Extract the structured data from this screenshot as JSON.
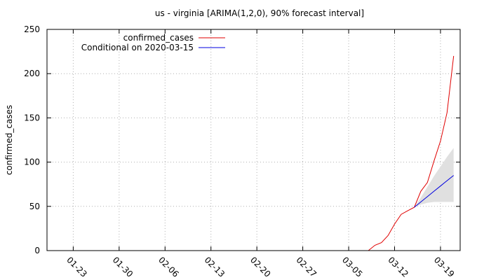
{
  "chart_data": {
    "type": "line",
    "title": "us - virginia [ARIMA(1,2,0), 90% forecast interval]",
    "xlabel": "",
    "ylabel": "confirmed_cases",
    "xlim": [
      "2020-01-19",
      "2020-03-22"
    ],
    "ylim": [
      0,
      250
    ],
    "x_ticks": [
      "2020-01-23",
      "2020-01-30",
      "2020-02-06",
      "2020-02-13",
      "2020-02-20",
      "2020-02-27",
      "2020-03-05",
      "2020-03-12",
      "2020-03-19"
    ],
    "x_tick_labels": [
      "01-23",
      "01-30",
      "02-06",
      "02-13",
      "02-20",
      "02-27",
      "03-05",
      "03-12",
      "03-19"
    ],
    "y_ticks": [
      0,
      50,
      100,
      150,
      200,
      250
    ],
    "grid": true,
    "legend_position": "top-left",
    "series": [
      {
        "name": "confirmed_cases",
        "color": "#e00000",
        "x": [
          "2020-03-08",
          "2020-03-09",
          "2020-03-10",
          "2020-03-11",
          "2020-03-12",
          "2020-03-13",
          "2020-03-14",
          "2020-03-15",
          "2020-03-16",
          "2020-03-17",
          "2020-03-18",
          "2020-03-19",
          "2020-03-20",
          "2020-03-21"
        ],
        "y": [
          0,
          6,
          9,
          17,
          30,
          41,
          45,
          49,
          67,
          77,
          101,
          124,
          156,
          220
        ]
      },
      {
        "name": "Conditional on 2020-03-15",
        "color": "#0000e0",
        "x": [
          "2020-03-15",
          "2020-03-16",
          "2020-03-17",
          "2020-03-18",
          "2020-03-19",
          "2020-03-20",
          "2020-03-21"
        ],
        "y": [
          49,
          55,
          61,
          67,
          73,
          79,
          85
        ]
      }
    ],
    "forecast_interval": {
      "level": "90%",
      "color": "#e0e0e0",
      "x": [
        "2020-03-15",
        "2020-03-16",
        "2020-03-17",
        "2020-03-18",
        "2020-03-19",
        "2020-03-20",
        "2020-03-21"
      ],
      "lower": [
        49,
        52,
        54,
        55,
        55,
        55,
        55
      ],
      "upper": [
        49,
        60,
        72,
        84,
        95,
        106,
        116
      ]
    }
  }
}
